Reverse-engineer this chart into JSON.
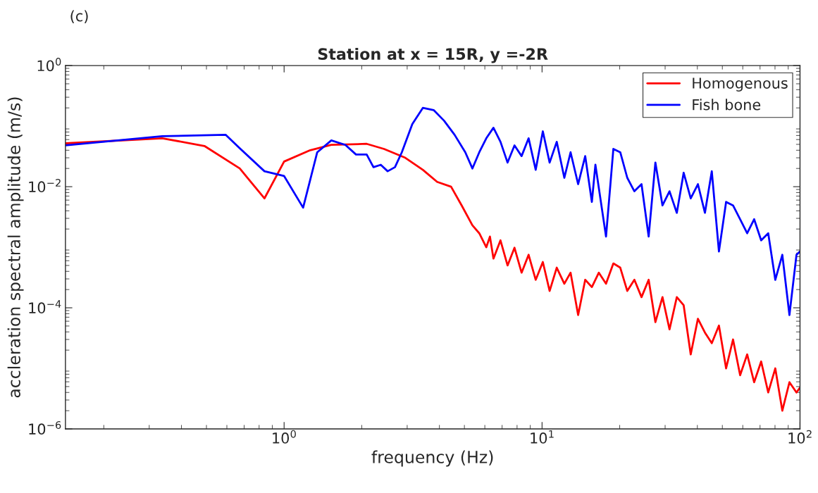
{
  "chart_data": {
    "type": "line",
    "title": "Station at x = 15R, y =-2R",
    "xlabel": "frequency (Hz)",
    "ylabel": "accleration spectral amplitude (m/s)",
    "log": "xy",
    "xlim": [
      0.142,
      100
    ],
    "ylim": [
      1e-06,
      1
    ],
    "xticks": [
      {
        "value": 1,
        "label": "10$^{0}$"
      },
      {
        "value": 10,
        "label": "10$^{1}$"
      },
      {
        "value": 100,
        "label": "10$^{2}$"
      }
    ],
    "yticks": [
      {
        "value": 1e-06,
        "label": "10$^{−6}$"
      },
      {
        "value": 0.0001,
        "label": "10$^{−4}$"
      },
      {
        "value": 0.01,
        "label": "10$^{−2}$"
      },
      {
        "value": 1,
        "label": "10$^{0}$"
      }
    ],
    "grid": false,
    "legend": "top right",
    "marker": "none",
    "line_style": "solid",
    "annotations": [
      "(c)"
    ],
    "series": [
      {
        "name": "Homogenous",
        "color": "#ff0000",
        "x": [
          0.142,
          0.337,
          0.491,
          0.673,
          0.839,
          1,
          1.262,
          1.524,
          2.09,
          2.44,
          2.95,
          3.45,
          3.92,
          4.44,
          4.88,
          5.37,
          5.71,
          6.08,
          6.28,
          6.48,
          6.9,
          7.35,
          7.82,
          8.33,
          8.87,
          9.45,
          10.07,
          10.7,
          11.4,
          12.2,
          12.9,
          13.8,
          14.7,
          15.6,
          16.6,
          17.7,
          18.9,
          20.1,
          21.4,
          22.8,
          24.3,
          25.9,
          27.5,
          29.3,
          31.2,
          33.3,
          35.4,
          37.7,
          40.2,
          42.8,
          45.5,
          48.5,
          51.7,
          55.0,
          58.6,
          62.4,
          66.4,
          70.7,
          75.3,
          80.2,
          85.4,
          91.0,
          96.9,
          100
        ],
        "values": [
          0.052,
          0.063,
          0.047,
          0.02,
          0.0064,
          0.026,
          0.04,
          0.049,
          0.051,
          0.042,
          0.03,
          0.019,
          0.012,
          0.01,
          0.0049,
          0.0023,
          0.0017,
          0.001,
          0.0015,
          0.00065,
          0.0013,
          0.0005,
          0.00098,
          0.00038,
          0.00075,
          0.00029,
          0.00057,
          0.00019,
          0.00046,
          0.00025,
          0.00038,
          7.6e-05,
          0.00029,
          0.00022,
          0.00038,
          0.00025,
          0.00054,
          0.00046,
          0.00019,
          0.00029,
          0.00015,
          0.00029,
          5.8e-05,
          0.00015,
          4.4e-05,
          0.00015,
          0.00011,
          1.7e-05,
          6.6e-05,
          3.9e-05,
          2.6e-05,
          5.1e-05,
          1e-05,
          3e-05,
          7.7e-06,
          1.7e-05,
          5.9e-06,
          1.3e-05,
          4e-06,
          1e-05,
          2e-06,
          5.9e-06,
          4e-06,
          4.8e-06
        ]
      },
      {
        "name": "Fish bone",
        "color": "#0000ff",
        "x": [
          0.142,
          0.337,
          0.593,
          0.673,
          0.839,
          1,
          1.185,
          1.344,
          1.524,
          1.728,
          1.9,
          2.09,
          2.22,
          2.37,
          2.52,
          2.69,
          2.86,
          3.14,
          3.45,
          3.8,
          4.17,
          4.58,
          5.04,
          5.37,
          5.71,
          6.08,
          6.48,
          6.9,
          7.35,
          7.82,
          8.33,
          8.87,
          9.45,
          10.07,
          10.7,
          11.4,
          12.2,
          12.9,
          13.8,
          14.7,
          15.6,
          16.1,
          17.7,
          18.9,
          20.1,
          21.4,
          22.8,
          24.3,
          25.9,
          27.5,
          29.3,
          31.2,
          33.3,
          35.4,
          37.7,
          40.2,
          42.8,
          45.5,
          48.5,
          51.7,
          55.0,
          58.6,
          62.4,
          66.4,
          70.7,
          75.3,
          80.2,
          85.4,
          91.0,
          96.9,
          100
        ],
        "values": [
          0.048,
          0.068,
          0.072,
          0.043,
          0.018,
          0.015,
          0.0045,
          0.037,
          0.058,
          0.049,
          0.034,
          0.034,
          0.021,
          0.023,
          0.018,
          0.021,
          0.037,
          0.108,
          0.2,
          0.184,
          0.123,
          0.072,
          0.037,
          0.02,
          0.037,
          0.063,
          0.094,
          0.055,
          0.025,
          0.048,
          0.032,
          0.063,
          0.019,
          0.082,
          0.025,
          0.055,
          0.014,
          0.037,
          0.011,
          0.032,
          0.0056,
          0.023,
          0.0015,
          0.042,
          0.037,
          0.014,
          0.0084,
          0.011,
          0.0015,
          0.025,
          0.0049,
          0.0084,
          0.0037,
          0.017,
          0.0064,
          0.011,
          0.0037,
          0.018,
          0.00085,
          0.0056,
          0.0049,
          0.0029,
          0.0017,
          0.0029,
          0.0013,
          0.0017,
          0.00029,
          0.00075,
          7.6e-05,
          0.00075,
          0.00085
        ]
      }
    ]
  }
}
